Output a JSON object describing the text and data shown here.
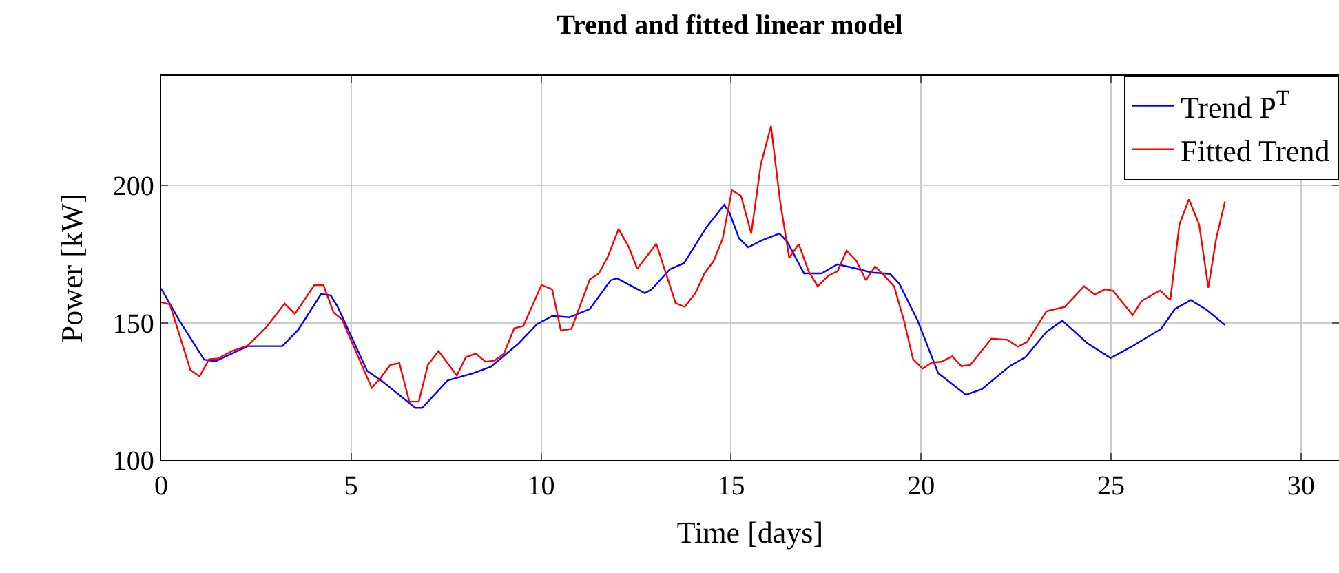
{
  "chart_data": {
    "type": "line",
    "title": "Trend and fitted linear model",
    "xlabel": "Time [days]",
    "ylabel": "Power [kW]",
    "xlim": [
      0,
      31
    ],
    "ylim": [
      100,
      240
    ],
    "xticks": [
      0,
      5,
      10,
      15,
      20,
      25,
      30
    ],
    "yticks": [
      100,
      150,
      200
    ],
    "grid": true,
    "legend": "top right",
    "line_style": "solid",
    "series": [
      {
        "name": "Trend P$^{T}$",
        "color": "#0000ff",
        "x": [
          0,
          0.47,
          1.13,
          1.43,
          2.28,
          3.19,
          3.61,
          4.21,
          4.46,
          4.64,
          5.42,
          5.79,
          6.69,
          6.87,
          7.54,
          8.2,
          8.68,
          9.41,
          9.89,
          10.3,
          10.74,
          11.28,
          11.83,
          12.0,
          12.73,
          12.91,
          13.39,
          13.76,
          14.36,
          14.82,
          14.96,
          15.21,
          15.45,
          15.8,
          16.27,
          16.47,
          16.92,
          17.38,
          17.8,
          18.22,
          18.71,
          19.19,
          19.43,
          19.91,
          20.45,
          21.18,
          21.6,
          22.33,
          22.75,
          23.3,
          23.72,
          24.38,
          24.99,
          25.59,
          26.32,
          26.68,
          27.1,
          27.52,
          28.0
        ],
        "values": [
          162.5,
          151,
          136.6,
          136,
          141.5,
          141.5,
          147.5,
          160.5,
          160,
          156,
          132.5,
          129,
          119,
          119,
          129,
          131.6,
          134,
          142.5,
          149.5,
          152.5,
          152,
          155,
          165.5,
          166.2,
          160.8,
          162.2,
          169.5,
          171.7,
          185,
          193,
          190,
          180.8,
          177.5,
          180,
          182.5,
          179.7,
          168,
          168,
          171.3,
          170,
          168.3,
          167.8,
          164.2,
          150.8,
          131.7,
          123.8,
          125.8,
          134.2,
          137.5,
          146.7,
          150.8,
          142.5,
          137.2,
          141.7,
          147.8,
          155,
          158.3,
          154.7,
          149.2
        ]
      },
      {
        "name": "Fitted Trend",
        "color": "#ff0000",
        "x": [
          0,
          0.23,
          0.77,
          1.01,
          1.26,
          1.5,
          1.86,
          2.28,
          2.58,
          2.76,
          3.25,
          3.52,
          4.03,
          4.27,
          4.54,
          4.76,
          5.54,
          5.75,
          6.03,
          6.27,
          6.53,
          6.78,
          7.02,
          7.3,
          7.78,
          8.02,
          8.28,
          8.54,
          8.78,
          9.02,
          9.29,
          9.53,
          10.01,
          10.29,
          10.52,
          10.8,
          11.28,
          11.52,
          11.76,
          12.04,
          12.31,
          12.53,
          13.03,
          13.54,
          13.78,
          14.06,
          14.3,
          14.54,
          14.78,
          15.02,
          15.26,
          15.53,
          15.78,
          16.05,
          16.29,
          16.53,
          16.78,
          17.04,
          17.28,
          17.56,
          17.8,
          18.04,
          18.29,
          18.55,
          18.79,
          19.03,
          19.29,
          19.55,
          19.79,
          20.04,
          20.28,
          20.54,
          20.82,
          21.06,
          21.3,
          21.85,
          22.27,
          22.55,
          22.79,
          23.3,
          23.78,
          24.29,
          24.57,
          24.84,
          25.05,
          25.57,
          25.81,
          26.29,
          26.56,
          26.8,
          27.05,
          27.32,
          27.56,
          27.77,
          28.0
        ],
        "values": [
          157.5,
          156.7,
          132.8,
          130.5,
          136.7,
          137,
          139.7,
          141.7,
          145.8,
          148.3,
          157,
          153.3,
          163.7,
          163.8,
          153.7,
          151.2,
          126.3,
          129.5,
          134.7,
          135.3,
          121.3,
          121.3,
          134.7,
          139.7,
          130.8,
          137.5,
          138.8,
          135.8,
          136.3,
          138.7,
          148,
          148.8,
          163.8,
          162.2,
          147.2,
          147.8,
          165.8,
          168,
          174.2,
          184.2,
          177.5,
          169.7,
          178.8,
          157.2,
          155.8,
          160.8,
          168,
          172.5,
          180.8,
          198.3,
          196.3,
          182.5,
          207.5,
          221.7,
          194.2,
          173.7,
          178.7,
          168.8,
          163.3,
          167.2,
          168.8,
          176.3,
          172.8,
          165.5,
          170.5,
          167.2,
          163.3,
          150.8,
          136.7,
          133.3,
          135.5,
          135.8,
          137.8,
          134.2,
          134.7,
          144.2,
          143.8,
          141.3,
          143,
          154.2,
          155.8,
          163.3,
          160.3,
          162.2,
          161.7,
          152.8,
          158,
          161.8,
          158.3,
          185.8,
          195,
          185.8,
          162.8,
          180.8,
          194.2
        ]
      }
    ]
  }
}
